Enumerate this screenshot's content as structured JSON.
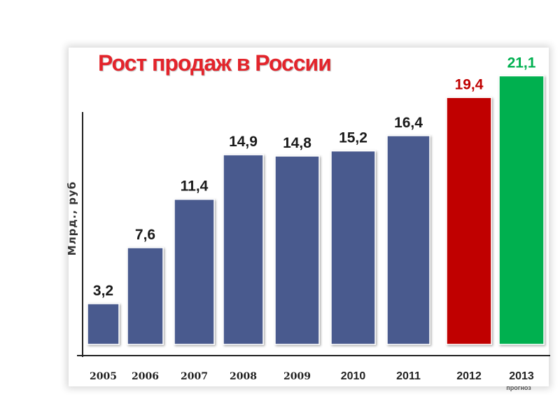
{
  "chart_data": {
    "type": "bar",
    "title": "Рост продаж в России",
    "xlabel": "",
    "ylabel": "Млрд., руб",
    "categories": [
      "2005",
      "2006",
      "2007",
      "2008",
      "2009",
      "2010",
      "2011",
      "2012",
      "2013"
    ],
    "category_notes": [
      "",
      "",
      "",
      "",
      "",
      "",
      "",
      "",
      "прогноз"
    ],
    "values": [
      3.2,
      7.6,
      11.4,
      14.9,
      14.8,
      15.2,
      16.4,
      19.4,
      21.1
    ],
    "value_labels": [
      "3,2",
      "7,6",
      "11,4",
      "14,9",
      "14,8",
      "15,2",
      "16,4",
      "19,4",
      "21,1"
    ],
    "ylim": [
      0,
      22
    ],
    "grid": false,
    "colors": {
      "title": "#e3242b",
      "axis": "#222222",
      "axis_label": "#333333",
      "tick_labels": "#222222",
      "bars": [
        "#4a5a8e",
        "#4a5a8e",
        "#4a5a8e",
        "#4a5a8e",
        "#4a5a8e",
        "#4a5a8e",
        "#4a5a8e",
        "#c00000",
        "#00b050"
      ],
      "value_labels": [
        "#1a1a1a",
        "#1a1a1a",
        "#1a1a1a",
        "#1a1a1a",
        "#1a1a1a",
        "#1a1a1a",
        "#1a1a1a",
        "#c00000",
        "#00b050"
      ]
    }
  }
}
